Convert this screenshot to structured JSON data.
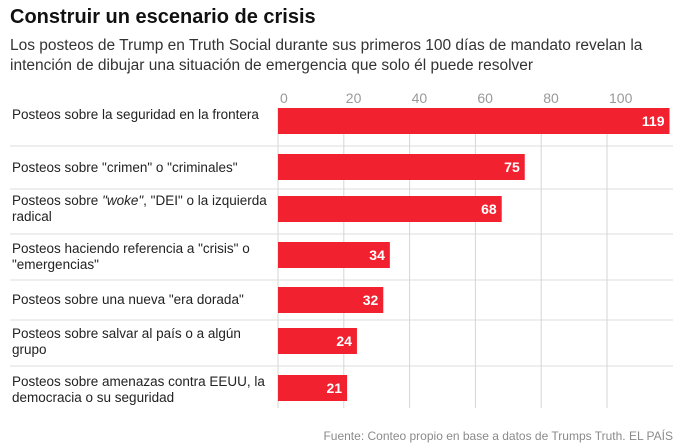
{
  "header": {
    "title": "Construir un escenario de crisis",
    "subtitle": "Los posteos de Trump en Truth Social durante sus primeros 100 días de mandato revelan la intención de dibujar una situación de emergencia que solo él puede resolver"
  },
  "footer": {
    "source": "Fuente: Conteo propio en base a datos de Trumps Truth. EL PAÍS"
  },
  "colors": {
    "bar": "#f2212f",
    "bar_label": "#ffffff",
    "grid": "#d6d6d6",
    "separator": "#dcdcdc",
    "tick": "#999999"
  },
  "chart_data": {
    "type": "bar",
    "orientation": "horizontal",
    "title": "Construir un escenario de crisis",
    "subtitle": "Los posteos de Trump en Truth Social durante sus primeros 100 días de mandato revelan la intención de dibujar una situación de emergencia que solo él puede resolver",
    "categories": [
      "Posteos sobre la seguridad en la frontera",
      "Posteos sobre \"crimen\" o \"criminales\"",
      "Posteos sobre \"woke\", \"DEI\" o la izquierda radical",
      "Posteos haciendo referencia a \"crisis\" o \"emergencias\"",
      "Posteos sobre una nueva \"era dorada\"",
      "Posteos sobre salvar al país o a algún grupo",
      "Posteos sobre amenazas contra EEUU, la democracia o su seguridad"
    ],
    "values": [
      119,
      75,
      68,
      34,
      32,
      24,
      21
    ],
    "xticks": [
      0,
      20,
      40,
      60,
      80,
      100
    ],
    "xlim": [
      0,
      120
    ],
    "xlabel": "",
    "ylabel": "",
    "grid": true,
    "axis_position": "top",
    "source": "Fuente: Conteo propio en base a datos de Trumps Truth. EL PAÍS"
  }
}
